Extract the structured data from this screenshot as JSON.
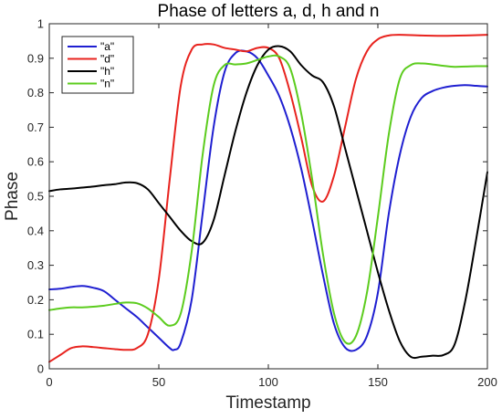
{
  "chart_data": {
    "type": "line",
    "title": "Phase of letters a, d, h and n",
    "xlabel": "Timestamp",
    "ylabel": "Phase",
    "xlim": [
      0,
      200
    ],
    "ylim": [
      0,
      1
    ],
    "xticks": [
      0,
      50,
      100,
      150,
      200
    ],
    "yticks": [
      0,
      0.1,
      0.2,
      0.3,
      0.4,
      0.5,
      0.6,
      0.7,
      0.8,
      0.9,
      1
    ],
    "grid": false,
    "legend_position": "top-left",
    "series": [
      {
        "name": "\"a\"",
        "color": "#1f1fd1",
        "x": [
          0,
          5,
          10,
          15,
          20,
          25,
          30,
          35,
          40,
          45,
          50,
          55,
          57,
          60,
          65,
          70,
          75,
          80,
          85,
          90,
          95,
          100,
          105,
          110,
          115,
          120,
          125,
          130,
          135,
          140,
          145,
          150,
          155,
          160,
          165,
          170,
          175,
          180,
          185,
          190,
          195,
          200
        ],
        "y": [
          0.23,
          0.232,
          0.237,
          0.24,
          0.235,
          0.225,
          0.2,
          0.175,
          0.15,
          0.12,
          0.09,
          0.06,
          0.055,
          0.075,
          0.2,
          0.45,
          0.7,
          0.86,
          0.915,
          0.92,
          0.9,
          0.85,
          0.79,
          0.7,
          0.58,
          0.43,
          0.27,
          0.13,
          0.062,
          0.055,
          0.095,
          0.22,
          0.45,
          0.62,
          0.73,
          0.785,
          0.805,
          0.815,
          0.82,
          0.822,
          0.82,
          0.818
        ]
      },
      {
        "name": "\"d\"",
        "color": "#e8231e",
        "x": [
          0,
          5,
          10,
          15,
          20,
          25,
          30,
          35,
          40,
          45,
          50,
          55,
          60,
          65,
          70,
          75,
          80,
          85,
          90,
          95,
          100,
          105,
          110,
          115,
          120,
          125,
          130,
          135,
          140,
          145,
          150,
          155,
          160,
          170,
          180,
          190,
          200
        ],
        "y": [
          0.02,
          0.04,
          0.06,
          0.065,
          0.063,
          0.06,
          0.057,
          0.055,
          0.06,
          0.1,
          0.26,
          0.55,
          0.82,
          0.925,
          0.94,
          0.94,
          0.93,
          0.925,
          0.92,
          0.93,
          0.93,
          0.9,
          0.8,
          0.67,
          0.53,
          0.485,
          0.56,
          0.7,
          0.84,
          0.92,
          0.955,
          0.966,
          0.968,
          0.966,
          0.965,
          0.966,
          0.968
        ]
      },
      {
        "name": "\"h\"",
        "color": "#000000",
        "x": [
          0,
          5,
          10,
          15,
          20,
          25,
          30,
          35,
          40,
          45,
          50,
          55,
          60,
          65,
          70,
          75,
          80,
          85,
          90,
          95,
          100,
          105,
          110,
          115,
          120,
          125,
          130,
          135,
          140,
          145,
          150,
          155,
          160,
          165,
          170,
          175,
          180,
          185,
          190,
          195,
          200
        ],
        "y": [
          0.515,
          0.52,
          0.522,
          0.525,
          0.528,
          0.532,
          0.535,
          0.54,
          0.538,
          0.52,
          0.48,
          0.44,
          0.4,
          0.37,
          0.365,
          0.43,
          0.56,
          0.69,
          0.8,
          0.88,
          0.925,
          0.935,
          0.92,
          0.88,
          0.85,
          0.83,
          0.76,
          0.64,
          0.52,
          0.4,
          0.28,
          0.17,
          0.08,
          0.035,
          0.035,
          0.038,
          0.04,
          0.07,
          0.2,
          0.38,
          0.57
        ]
      },
      {
        "name": "\"n\"",
        "color": "#5ccc1e",
        "x": [
          0,
          5,
          10,
          15,
          20,
          25,
          30,
          35,
          40,
          45,
          50,
          55,
          60,
          65,
          70,
          75,
          80,
          85,
          90,
          95,
          100,
          105,
          110,
          115,
          120,
          125,
          130,
          135,
          140,
          145,
          150,
          155,
          160,
          165,
          170,
          175,
          180,
          185,
          190,
          195,
          200
        ],
        "y": [
          0.17,
          0.175,
          0.178,
          0.178,
          0.18,
          0.183,
          0.188,
          0.192,
          0.19,
          0.175,
          0.15,
          0.125,
          0.16,
          0.34,
          0.62,
          0.82,
          0.88,
          0.882,
          0.885,
          0.895,
          0.905,
          0.905,
          0.87,
          0.74,
          0.55,
          0.33,
          0.16,
          0.078,
          0.095,
          0.22,
          0.44,
          0.68,
          0.84,
          0.88,
          0.885,
          0.882,
          0.878,
          0.875,
          0.876,
          0.877,
          0.877
        ]
      }
    ]
  }
}
